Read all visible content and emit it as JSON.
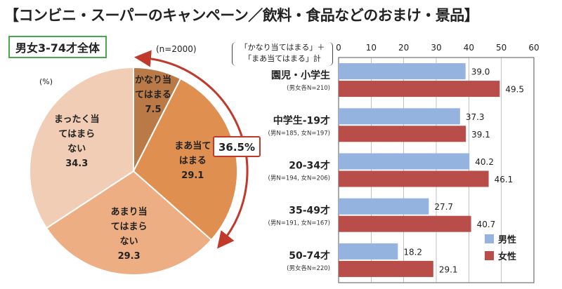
{
  "page": {
    "title": "【コンビニ・スーパーのキャンペーン／飲料・食品などのおまけ・景品】",
    "subtitle": "男女3-74才全体",
    "sample_size": "(n=2000)",
    "pie_unit": "(%)",
    "callout": "36.5%",
    "bar_legend_title_line1": "「かなり当てはまる」＋",
    "bar_legend_title_line2": "「まあ当てはまる」計"
  },
  "chart_data": [
    {
      "type": "pie",
      "unit": "(%)",
      "slices": [
        {
          "label": "かなり当\nてはまる",
          "value": 7.5,
          "color": "#b97a47"
        },
        {
          "label": "まあ当て\nはまる",
          "value": 29.1,
          "color": "#df8f4f"
        },
        {
          "label": "あまり当\nてはまら\nない",
          "value": 29.3,
          "color": "#edae83"
        },
        {
          "label": "まったく当\nてはまら\nない",
          "value": 34.3,
          "color": "#f2cdb5"
        }
      ]
    },
    {
      "type": "bar",
      "orientation": "horizontal",
      "xlim": [
        0,
        60
      ],
      "xticks": [
        0,
        10,
        20,
        30,
        40,
        50,
        60
      ],
      "categories": [
        {
          "label": "園児・小学生",
          "note": "(男女各N=210)"
        },
        {
          "label": "中学生-19才",
          "note": "(男N=185, 女N=197)"
        },
        {
          "label": "20-34才",
          "note": "(男N=194, 女N=206)"
        },
        {
          "label": "35-49才",
          "note": "(男N=191, 女N=167)"
        },
        {
          "label": "50-74才",
          "note": "(男女各N=220)"
        }
      ],
      "series": [
        {
          "name": "男性",
          "color": "#94b3df",
          "values": [
            39.0,
            37.3,
            40.2,
            27.7,
            18.2
          ]
        },
        {
          "name": "女性",
          "color": "#b94d4a",
          "values": [
            49.5,
            39.1,
            46.1,
            40.7,
            29.1
          ]
        }
      ],
      "legend": "bottom-right"
    }
  ]
}
